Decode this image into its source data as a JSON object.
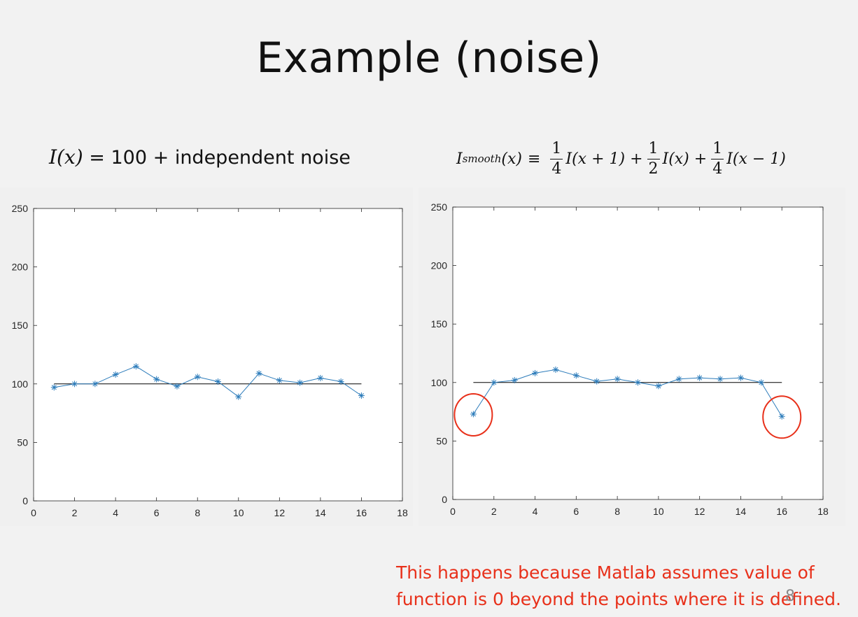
{
  "slide": {
    "title": "Example  (noise)",
    "eq_left_math": "I(x)",
    "eq_left_text": " =  100  + independent noise",
    "eq_right": {
      "lhs": "I",
      "lhs_sub": "smooth",
      "lhs_arg": "(x)",
      "equiv": "≡",
      "term1_num": "1",
      "term1_den": "4",
      "term1": "I(x + 1) +",
      "term2_num": "1",
      "term2_den": "2",
      "term2": "I(x) +",
      "term3_num": "1",
      "term3_den": "4",
      "term3": "I(x − 1)"
    },
    "note_line1": "This happens because Matlab assumes value of",
    "note_line2": "function is 0 beyond the points where it is defined.",
    "page_number": "8"
  },
  "colors": {
    "series": "#2b7bba",
    "reference": "#000000",
    "highlight": "#e8301a",
    "note": "#e8301a"
  },
  "chart_data": [
    {
      "type": "line",
      "title": "",
      "xlabel": "",
      "ylabel": "",
      "xlim": [
        0,
        18
      ],
      "ylim": [
        0,
        250
      ],
      "xticks": [
        0,
        2,
        4,
        6,
        8,
        10,
        12,
        14,
        16,
        18
      ],
      "yticks": [
        0,
        50,
        100,
        150,
        200,
        250
      ],
      "grid": false,
      "marker": "asterisk",
      "series": [
        {
          "x": [
            1,
            2,
            3,
            4,
            5,
            6,
            7,
            8,
            9,
            10,
            11,
            12,
            13,
            14,
            15,
            16
          ],
          "values": [
            97,
            100,
            100,
            108,
            115,
            104,
            98,
            106,
            102,
            89,
            109,
            103,
            101,
            105,
            102,
            90
          ]
        }
      ],
      "reference_line": {
        "x": [
          1,
          16
        ],
        "y": [
          100,
          100
        ]
      }
    },
    {
      "type": "line",
      "title": "",
      "xlabel": "",
      "ylabel": "",
      "xlim": [
        0,
        18
      ],
      "ylim": [
        0,
        250
      ],
      "xticks": [
        0,
        2,
        4,
        6,
        8,
        10,
        12,
        14,
        16,
        18
      ],
      "yticks": [
        0,
        50,
        100,
        150,
        200,
        250
      ],
      "grid": false,
      "marker": "asterisk",
      "series": [
        {
          "x": [
            1,
            2,
            3,
            4,
            5,
            6,
            7,
            8,
            9,
            10,
            11,
            12,
            13,
            14,
            15,
            16
          ],
          "values": [
            73,
            100,
            102,
            108,
            111,
            106,
            101,
            103,
            100,
            97,
            103,
            104,
            103,
            104,
            100,
            71
          ]
        }
      ],
      "reference_line": {
        "x": [
          1,
          16
        ],
        "y": [
          100,
          100
        ]
      },
      "highlighted_points": [
        1,
        16
      ]
    }
  ]
}
